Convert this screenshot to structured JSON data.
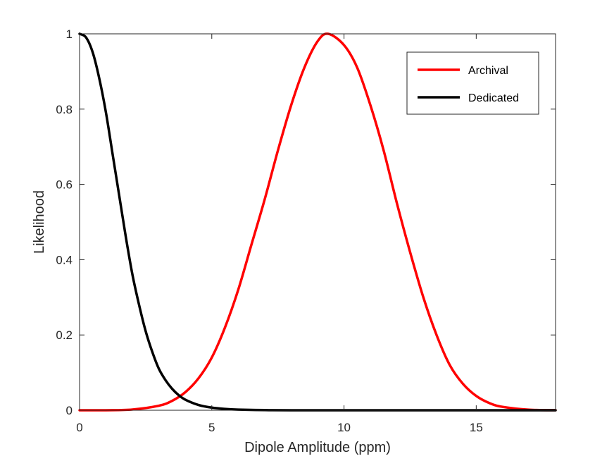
{
  "chart_data": {
    "type": "line",
    "title": "",
    "xlabel": "Dipole Amplitude (ppm)",
    "ylabel": "Likelihood",
    "xlim": [
      0,
      18
    ],
    "ylim": [
      0,
      1
    ],
    "xticks": [
      0,
      5,
      10,
      15
    ],
    "yticks": [
      0,
      0.2,
      0.4,
      0.6,
      0.8,
      1
    ],
    "xtick_labels": [
      "0",
      "5",
      "10",
      "15"
    ],
    "ytick_labels": [
      "0",
      "0.2",
      "0.4",
      "0.6",
      "0.8",
      "1"
    ],
    "grid": false,
    "legend_position": "top-right",
    "series": [
      {
        "name": "Archival",
        "color": "#ff0000",
        "x": [
          0,
          1,
          2,
          3,
          3.5,
          4,
          4.5,
          5,
          5.5,
          6,
          6.5,
          7,
          7.5,
          8,
          8.5,
          9,
          9.4,
          10,
          10.5,
          11,
          11.5,
          12,
          12.5,
          13,
          13.5,
          14,
          14.5,
          15,
          15.5,
          16,
          17,
          18
        ],
        "y": [
          0,
          0.0001,
          0.002,
          0.012,
          0.025,
          0.048,
          0.085,
          0.14,
          0.22,
          0.32,
          0.44,
          0.56,
          0.69,
          0.81,
          0.91,
          0.98,
          1.0,
          0.97,
          0.91,
          0.81,
          0.69,
          0.55,
          0.42,
          0.3,
          0.2,
          0.12,
          0.07,
          0.038,
          0.019,
          0.009,
          0.0015,
          0.0002
        ]
      },
      {
        "name": "Dedicated",
        "color": "#000000",
        "x": [
          0,
          0.25,
          0.5,
          0.75,
          1,
          1.25,
          1.5,
          1.75,
          2,
          2.25,
          2.5,
          2.75,
          3,
          3.25,
          3.5,
          3.75,
          4,
          4.5,
          5,
          5.5,
          6,
          7,
          8,
          10,
          12,
          18
        ],
        "y": [
          1.0,
          0.99,
          0.95,
          0.88,
          0.79,
          0.68,
          0.57,
          0.46,
          0.36,
          0.28,
          0.21,
          0.155,
          0.11,
          0.08,
          0.057,
          0.04,
          0.028,
          0.014,
          0.007,
          0.0035,
          0.0017,
          0.0004,
          0.0001,
          0,
          0,
          0
        ]
      }
    ]
  }
}
